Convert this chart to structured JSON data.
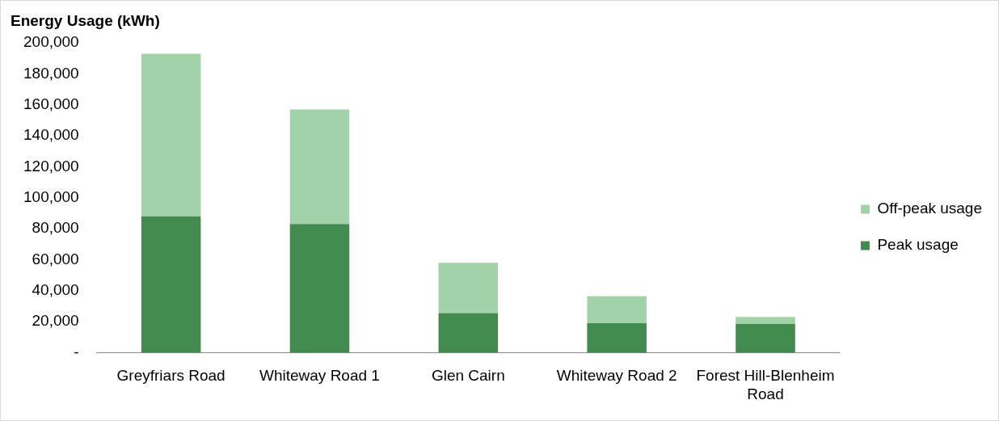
{
  "chart_data": {
    "type": "bar",
    "ylabel": "Energy Usage (kWh)",
    "stacked": true,
    "categories": [
      "Greyfriars Road",
      "Whiteway Road 1",
      "Glen Cairn",
      "Whiteway Road 2",
      "Forest Hill-Blenheim Road"
    ],
    "series": [
      {
        "name": "Peak usage",
        "color": "#438a4f",
        "values": [
          88000,
          83000,
          25500,
          19000,
          18500
        ]
      },
      {
        "name": "Off-peak usage",
        "color": "#a3d1a8",
        "values": [
          105000,
          74000,
          32500,
          17500,
          4500
        ]
      }
    ],
    "ylim": [
      0,
      200000
    ],
    "yticks": [
      {
        "value": 0,
        "label": "-"
      },
      {
        "value": 20000,
        "label": "20,000"
      },
      {
        "value": 40000,
        "label": "40,000"
      },
      {
        "value": 60000,
        "label": "60,000"
      },
      {
        "value": 80000,
        "label": "80,000"
      },
      {
        "value": 100000,
        "label": "100,000"
      },
      {
        "value": 120000,
        "label": "120,000"
      },
      {
        "value": 140000,
        "label": "140,000"
      },
      {
        "value": 160000,
        "label": "160,000"
      },
      {
        "value": 180000,
        "label": "180,000"
      },
      {
        "value": 200000,
        "label": "200,000"
      }
    ],
    "grid": false,
    "legend": "right"
  }
}
